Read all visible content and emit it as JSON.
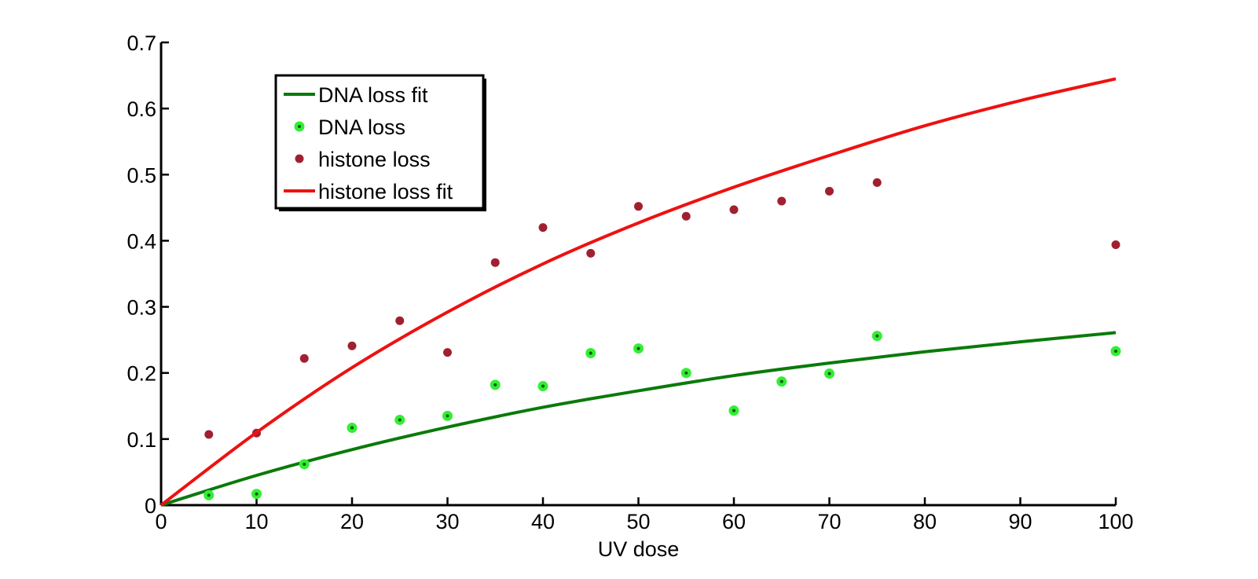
{
  "chart_data": {
    "type": "scatter",
    "xlabel": "UV dose",
    "ylabel": "",
    "title": "",
    "xlim": [
      0,
      100
    ],
    "ylim": [
      0,
      0.7
    ],
    "xticks": [
      "0",
      "10",
      "20",
      "30",
      "40",
      "50",
      "60",
      "70",
      "80",
      "90",
      "100"
    ],
    "yticks": [
      "0",
      "0.1",
      "0.2",
      "0.3",
      "0.4",
      "0.5",
      "0.6",
      "0.7"
    ],
    "grid": false,
    "legend_position": "top-left",
    "series": [
      {
        "name": "DNA loss fit",
        "kind": "line",
        "color": "#0a7a0a",
        "x": [
          0,
          10,
          20,
          30,
          40,
          50,
          60,
          70,
          80,
          90,
          100
        ],
        "y": [
          0,
          0.045,
          0.084,
          0.118,
          0.148,
          0.173,
          0.196,
          0.215,
          0.232,
          0.247,
          0.261
        ]
      },
      {
        "name": "DNA loss",
        "kind": "points",
        "color": "#33ee33",
        "x": [
          5,
          10,
          15,
          20,
          25,
          30,
          35,
          40,
          45,
          50,
          55,
          60,
          65,
          70,
          75,
          100
        ],
        "y": [
          0.015,
          0.017,
          0.062,
          0.117,
          0.129,
          0.135,
          0.182,
          0.18,
          0.23,
          0.237,
          0.2,
          0.143,
          0.187,
          0.199,
          0.256,
          0.233
        ]
      },
      {
        "name": "histone loss",
        "kind": "points",
        "color": "#a02030",
        "x": [
          5,
          10,
          15,
          20,
          25,
          30,
          35,
          40,
          45,
          50,
          55,
          60,
          65,
          70,
          75,
          100
        ],
        "y": [
          0.107,
          0.109,
          0.222,
          0.241,
          0.279,
          0.231,
          0.367,
          0.42,
          0.381,
          0.452,
          0.437,
          0.447,
          0.46,
          0.475,
          0.488,
          0.394
        ]
      },
      {
        "name": "histone loss fit",
        "kind": "line",
        "color": "#ee1111",
        "x": [
          0,
          10,
          20,
          30,
          40,
          50,
          60,
          70,
          80,
          90,
          100
        ],
        "y": [
          0,
          0.11,
          0.208,
          0.292,
          0.365,
          0.427,
          0.481,
          0.529,
          0.574,
          0.612,
          0.645
        ]
      }
    ]
  }
}
